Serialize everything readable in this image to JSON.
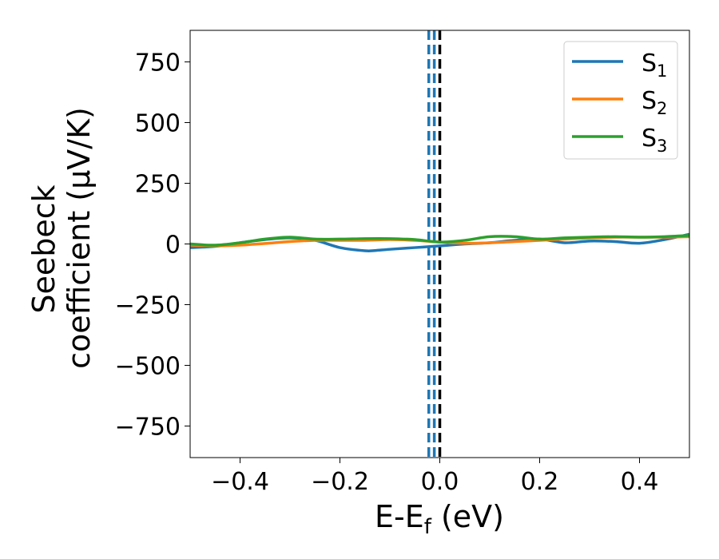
{
  "chart_data": {
    "type": "line",
    "title": "",
    "xlabel": "E-E",
    "xlabel_sub": "f",
    "xlabel_unit": " (eV)",
    "ylabel_line1": "Seebeck",
    "ylabel_line2": "coefficient  (μV/K)",
    "xlim": [
      -0.5,
      0.5
    ],
    "ylim": [
      -880,
      880
    ],
    "xticks": [
      -0.4,
      -0.2,
      0.0,
      0.2,
      0.4
    ],
    "xtick_labels": [
      "−0.4",
      "−0.2",
      "0.0",
      "0.2",
      "0.4"
    ],
    "yticks": [
      750,
      500,
      250,
      0,
      -250,
      -500,
      -750
    ],
    "ytick_labels": [
      "750",
      "500",
      "250",
      "0",
      "−250",
      "−500",
      "−750"
    ],
    "grid": false,
    "legend_position": "top-right",
    "vlines": [
      {
        "x": -0.022,
        "color": "#1f77b4",
        "style": "dashed"
      },
      {
        "x": -0.011,
        "color": "#1f77b4",
        "style": "dashed"
      },
      {
        "x": 0.0,
        "color": "#000000",
        "style": "dashed"
      }
    ],
    "series": [
      {
        "name": "S",
        "sub": "1",
        "color": "#1f77b4",
        "x": [
          -0.5,
          -0.45,
          -0.4,
          -0.35,
          -0.3,
          -0.25,
          -0.2,
          -0.15,
          -0.13,
          -0.1,
          -0.05,
          0.0,
          0.05,
          0.1,
          0.15,
          0.2,
          0.25,
          0.3,
          0.35,
          0.4,
          0.45,
          0.5
        ],
        "y": [
          -15,
          -10,
          5,
          18,
          25,
          15,
          -15,
          -28,
          -27,
          -22,
          -15,
          -8,
          0,
          5,
          15,
          20,
          5,
          12,
          10,
          3,
          18,
          40
        ]
      },
      {
        "name": "S",
        "sub": "2",
        "color": "#ff7f0e",
        "x": [
          -0.5,
          -0.45,
          -0.4,
          -0.35,
          -0.3,
          -0.25,
          -0.2,
          -0.15,
          -0.1,
          -0.05,
          0.0,
          0.05,
          0.1,
          0.15,
          0.2,
          0.25,
          0.3,
          0.35,
          0.4,
          0.45,
          0.5
        ],
        "y": [
          -5,
          -8,
          -5,
          2,
          10,
          15,
          15,
          15,
          18,
          15,
          8,
          3,
          5,
          10,
          15,
          20,
          25,
          28,
          28,
          28,
          30
        ]
      },
      {
        "name": "S",
        "sub": "3",
        "color": "#2ca02c",
        "x": [
          -0.5,
          -0.45,
          -0.4,
          -0.35,
          -0.3,
          -0.25,
          -0.2,
          -0.15,
          -0.1,
          -0.05,
          0.0,
          0.05,
          0.1,
          0.15,
          0.2,
          0.25,
          0.3,
          0.35,
          0.4,
          0.45,
          0.5
        ],
        "y": [
          0,
          -5,
          5,
          20,
          28,
          20,
          20,
          22,
          22,
          18,
          8,
          15,
          30,
          30,
          20,
          25,
          28,
          30,
          28,
          30,
          35
        ]
      }
    ]
  }
}
